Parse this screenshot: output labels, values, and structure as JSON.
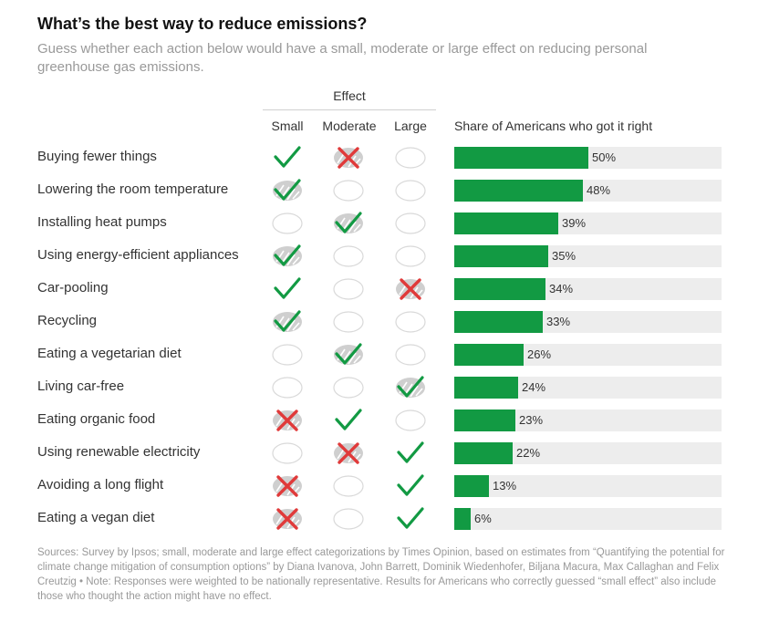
{
  "title": "What’s the best way to reduce emissions?",
  "subtitle": "Guess whether each action below would have a small, moderate or large effect on reducing personal greenhouse gas emissions.",
  "effect_header": "Effect",
  "columns": [
    "Small",
    "Moderate",
    "Large"
  ],
  "share_header": "Share of Americans who got it right",
  "colors": {
    "bar": "#129a43",
    "bar_bg": "#ededed",
    "check": "#129a43",
    "cross": "#e03a3a",
    "circle": "#d9d9d9"
  },
  "icons": {
    "check": "check-icon",
    "cross": "cross-icon",
    "empty": "empty-circle-icon",
    "answer_check": "answer-check-icon"
  },
  "chart_data": {
    "type": "bar",
    "orientation": "horizontal",
    "xlim": [
      0,
      100
    ],
    "grid": false,
    "categories": [
      "Buying fewer things",
      "Lowering the room temperature",
      "Installing heat pumps",
      "Using energy-efficient appliances",
      "Car-pooling",
      "Recycling",
      "Eating a vegetarian diet",
      "Living car-free",
      "Eating organic food",
      "Using renewable electricity",
      "Avoiding a long flight",
      "Eating a vegan diet"
    ],
    "values": [
      50,
      48,
      39,
      35,
      34,
      33,
      26,
      24,
      23,
      22,
      13,
      6
    ],
    "value_labels": [
      "50%",
      "48%",
      "39%",
      "35%",
      "34%",
      "33%",
      "26%",
      "24%",
      "23%",
      "22%",
      "13%",
      "6%"
    ],
    "rows": [
      {
        "label": "Buying fewer things",
        "marks": [
          "check",
          "cross_selected",
          "empty"
        ],
        "percent": 50
      },
      {
        "label": "Lowering the room temperature",
        "marks": [
          "check_selected",
          "empty",
          "empty"
        ],
        "percent": 48
      },
      {
        "label": "Installing heat pumps",
        "marks": [
          "empty",
          "check_selected",
          "empty"
        ],
        "percent": 39
      },
      {
        "label": "Using energy-efficient appliances",
        "marks": [
          "check_selected",
          "empty",
          "empty"
        ],
        "percent": 35
      },
      {
        "label": "Car-pooling",
        "marks": [
          "check",
          "empty",
          "cross_selected"
        ],
        "percent": 34
      },
      {
        "label": "Recycling",
        "marks": [
          "check_selected",
          "empty",
          "empty"
        ],
        "percent": 33
      },
      {
        "label": "Eating a vegetarian diet",
        "marks": [
          "empty",
          "check_selected",
          "empty"
        ],
        "percent": 26
      },
      {
        "label": "Living car-free",
        "marks": [
          "empty",
          "empty",
          "check_selected"
        ],
        "percent": 24
      },
      {
        "label": "Eating organic food",
        "marks": [
          "cross_selected",
          "check",
          "empty"
        ],
        "percent": 23
      },
      {
        "label": "Using renewable electricity",
        "marks": [
          "empty",
          "cross_selected",
          "check"
        ],
        "percent": 22
      },
      {
        "label": "Avoiding a long flight",
        "marks": [
          "cross_selected",
          "empty",
          "check"
        ],
        "percent": 13
      },
      {
        "label": "Eating a vegan diet",
        "marks": [
          "cross_selected",
          "empty",
          "check"
        ],
        "percent": 6
      }
    ]
  },
  "sources": "Sources: Survey by Ipsos; small, moderate and large effect categorizations by Times Opinion, based on estimates from “Quantifying the potential for climate change mitigation of consumption options” by Diana Ivanova, John Barrett, Dominik Wiedenhofer, Biljana Macura, Max Callaghan and Felix Creutzig  •  Note: Responses were weighted to be nationally representative. Results for Americans who correctly guessed “small effect” also include those who thought the action might have no effect."
}
